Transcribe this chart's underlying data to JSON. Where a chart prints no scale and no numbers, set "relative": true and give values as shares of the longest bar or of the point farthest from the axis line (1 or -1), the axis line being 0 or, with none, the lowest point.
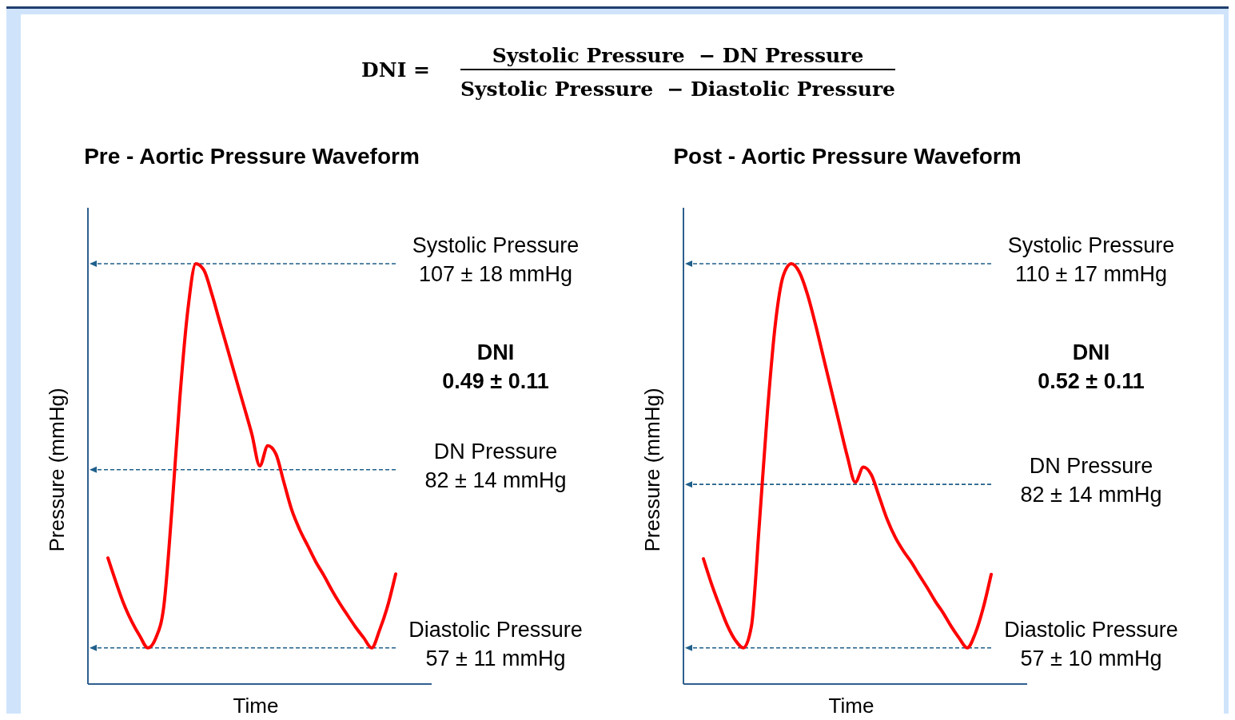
{
  "chart_data": [
    {
      "type": "line",
      "title": "Pre - Aortic Pressure Waveform",
      "xlabel": "Time",
      "ylabel": "Pressure (mmHg)",
      "relative": true,
      "categories": [
        null,
        null,
        null,
        null,
        null,
        null,
        null,
        null,
        null,
        null,
        null,
        null,
        null,
        null,
        null,
        null,
        null,
        null,
        null,
        null,
        null,
        null,
        null,
        null,
        null,
        null,
        null,
        null,
        null,
        null,
        null,
        null,
        null,
        null,
        null,
        null,
        null
      ],
      "series": [
        {
          "color": "#ff0000",
          "values": [
            0.3,
            0.243,
            0.19,
            0.148,
            0.114,
            0.086,
            0.11,
            0.186,
            0.414,
            0.681,
            0.89,
            1.0,
            0.985,
            0.928,
            0.861,
            0.795,
            0.728,
            0.662,
            0.595,
            0.519,
            0.567,
            0.548,
            0.481,
            0.414,
            0.367,
            0.329,
            0.291,
            0.259,
            0.224,
            0.192,
            0.163,
            0.135,
            0.11,
            0.086,
            0.129,
            0.186,
            0.262
          ]
        }
      ],
      "ref_lines": [
        {
          "axis": "y",
          "value": 1.0,
          "label": "Systolic Pressure\n107 ± 18 mmHg",
          "color": "#1f5f8b",
          "line_style": "dashed"
        },
        {
          "axis": "y",
          "value": 0.51,
          "label": "DN Pressure\n82 ± 14 mmHg",
          "color": "#1f5f8b",
          "line_style": "dashed"
        },
        {
          "axis": "y",
          "value": 0.086,
          "label": "Diastolic Pressure\n57 ± 11 mmHg",
          "color": "#1f5f8b",
          "line_style": "dashed"
        }
      ],
      "annotations": [
        "DNI",
        "0.49 ± 0.11",
        "DNI =",
        "Systolic Pressure  − DN Pressure",
        "Systolic Pressure  − Diastolic Pressure"
      ]
    },
    {
      "type": "line",
      "title": "Post - Aortic Pressure Waveform",
      "xlabel": "Time",
      "ylabel": "Pressure (mmHg)",
      "relative": true,
      "categories": [
        null,
        null,
        null,
        null,
        null,
        null,
        null,
        null,
        null,
        null,
        null,
        null,
        null,
        null,
        null,
        null,
        null,
        null,
        null,
        null,
        null,
        null,
        null,
        null,
        null,
        null,
        null,
        null,
        null,
        null,
        null,
        null,
        null,
        null,
        null,
        null,
        null
      ],
      "series": [
        {
          "color": "#ff0000",
          "values": [
            0.298,
            0.239,
            0.187,
            0.139,
            0.104,
            0.086,
            0.137,
            0.382,
            0.646,
            0.857,
            0.972,
            1.0,
            0.98,
            0.928,
            0.857,
            0.778,
            0.699,
            0.62,
            0.542,
            0.48,
            0.516,
            0.498,
            0.445,
            0.391,
            0.349,
            0.317,
            0.29,
            0.259,
            0.229,
            0.197,
            0.169,
            0.137,
            0.109,
            0.086,
            0.12,
            0.181,
            0.261
          ]
        }
      ],
      "ref_lines": [
        {
          "axis": "y",
          "value": 1.0,
          "label": "Systolic Pressure\n110 ± 17 mmHg",
          "color": "#1f5f8b",
          "line_style": "dashed"
        },
        {
          "axis": "y",
          "value": 0.475,
          "label": "DN Pressure\n82 ± 14 mmHg",
          "color": "#1f5f8b",
          "line_style": "dashed"
        },
        {
          "axis": "y",
          "value": 0.086,
          "label": "Diastolic Pressure\n57 ± 10 mmHg",
          "color": "#1f5f8b",
          "line_style": "dashed"
        }
      ],
      "annotations": [
        "DNI",
        "0.52 ± 0.11"
      ]
    }
  ]
}
